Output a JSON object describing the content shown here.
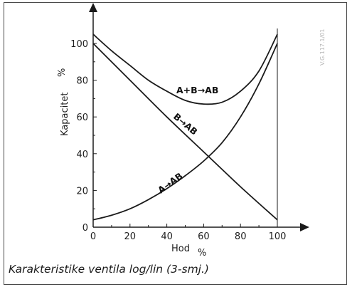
{
  "caption": "Karakteristike ventila log/lin (3-smj.)",
  "reference_code": "V.G.117.1/01",
  "chart_data": {
    "type": "line",
    "title": "",
    "xlabel": "Hod",
    "xlabel_unit": "%",
    "ylabel": "Kapacitet",
    "ylabel_unit": "%",
    "xlim": [
      0,
      100
    ],
    "ylim": [
      0,
      100
    ],
    "x_ticks": [
      0,
      20,
      40,
      60,
      80,
      100
    ],
    "y_ticks": [
      0,
      20,
      40,
      60,
      80,
      100
    ],
    "x_tick_labels": [
      "0",
      "20",
      "40",
      "60",
      "80",
      "100"
    ],
    "y_tick_labels": [
      "0",
      "20",
      "40",
      "60",
      "80",
      "100"
    ],
    "grid": false,
    "series": [
      {
        "name": "A+B→AB",
        "x": [
          0,
          10,
          20,
          30,
          40,
          50,
          60,
          70,
          80,
          90,
          100
        ],
        "y": [
          105,
          96,
          88,
          80,
          74,
          69,
          67,
          68,
          74,
          85,
          105
        ]
      },
      {
        "name": "B→AB",
        "x": [
          0,
          20,
          40,
          60,
          80,
          100
        ],
        "y": [
          100,
          80,
          60,
          41,
          22,
          4
        ]
      },
      {
        "name": "A→AB",
        "x": [
          0,
          10,
          20,
          30,
          40,
          50,
          60,
          70,
          80,
          90,
          100
        ],
        "y": [
          4,
          6.5,
          10,
          15,
          21,
          28,
          36,
          46,
          60,
          78,
          100
        ]
      }
    ]
  },
  "colors": {
    "line": "#1a1a1a",
    "frame": "#4a4a4a"
  }
}
